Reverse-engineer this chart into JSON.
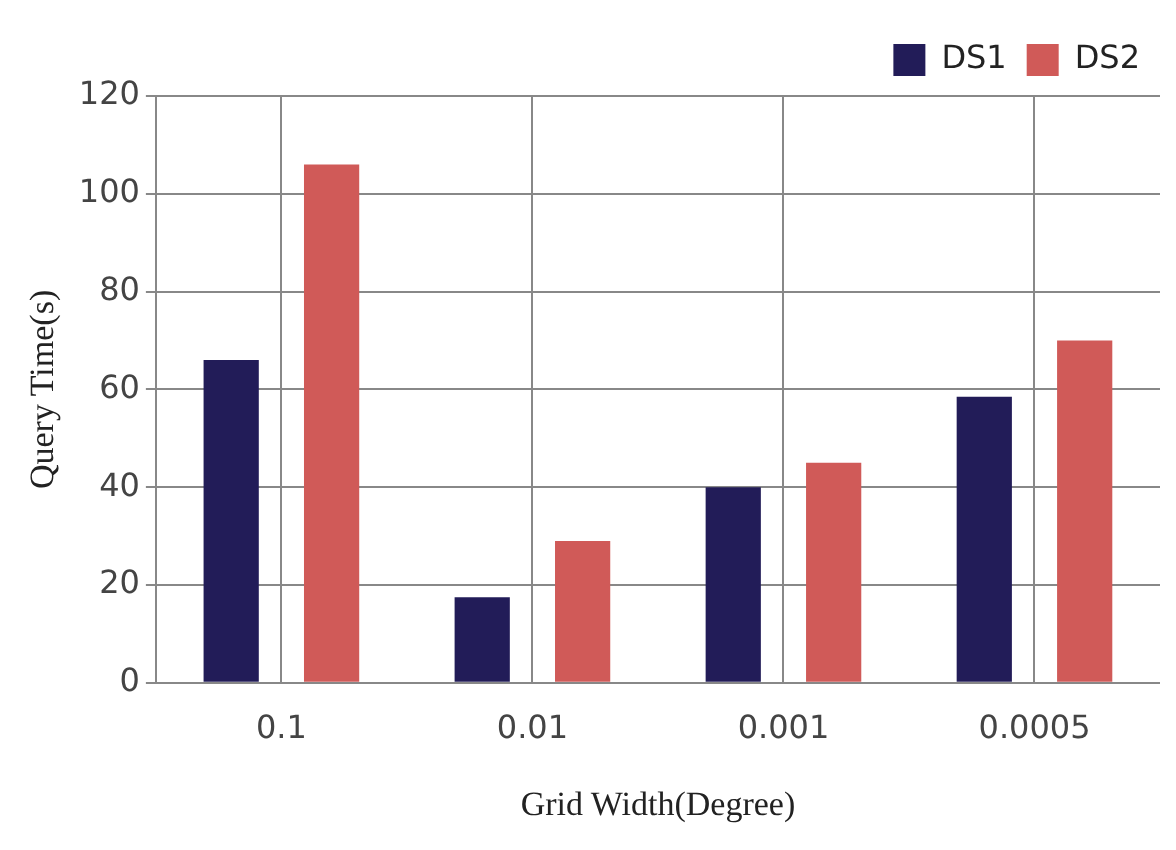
{
  "chart_data": {
    "type": "bar",
    "xlabel": "Grid Width(Degree)",
    "ylabel": "Query Time(s)",
    "categories": [
      "0.1",
      "0.01",
      "0.001",
      "0.0005"
    ],
    "series": [
      {
        "name": "DS1",
        "color": "#221c58",
        "values": [
          66,
          17.5,
          40,
          58.5
        ]
      },
      {
        "name": "DS2",
        "color": "#d05a58",
        "values": [
          106,
          29,
          45,
          70
        ]
      }
    ],
    "ylim": [
      0,
      120
    ],
    "yticks": [
      0,
      20,
      40,
      60,
      80,
      100,
      120
    ],
    "grid": true,
    "legend": "top right"
  }
}
